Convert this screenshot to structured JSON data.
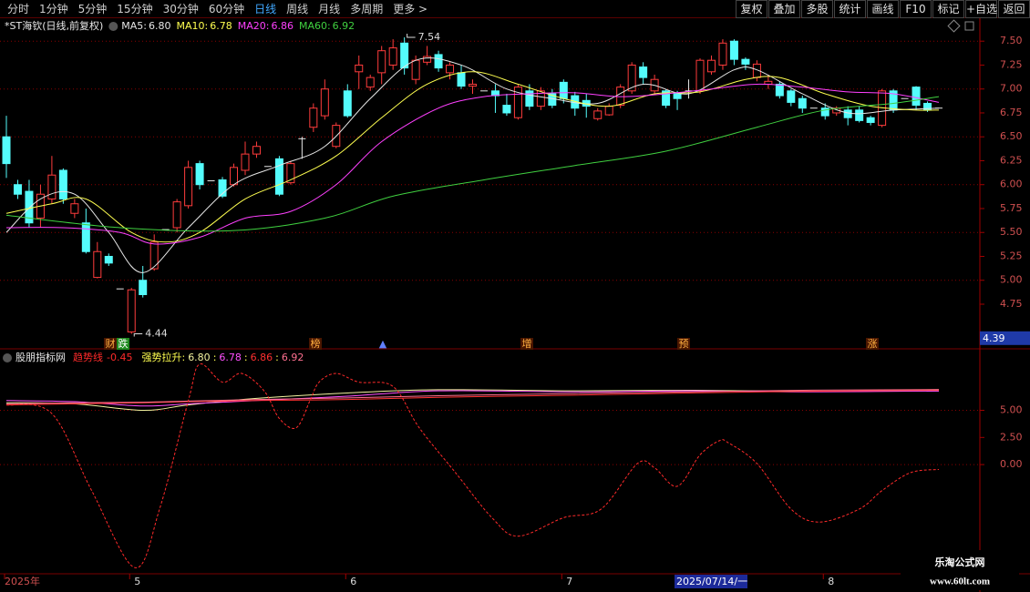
{
  "toolbar": {
    "tabs": [
      "分时",
      "1分钟",
      "5分钟",
      "15分钟",
      "30分钟",
      "60分钟",
      "日线",
      "周线",
      "月线",
      "多周期",
      "更多 >"
    ],
    "active": 6,
    "buttons": [
      "复权",
      "叠加",
      "多股",
      "统计",
      "画线",
      "F10",
      "标记",
      "+自选",
      "返回"
    ]
  },
  "chart_data": [
    {
      "type": "candlestick",
      "title": "*ST海钦(日线,前复权)",
      "xlim": [
        0,
        82
      ],
      "ylim": [
        4.35,
        7.74
      ],
      "grid": true,
      "yticks": [
        {
          "value": 7.5,
          "label": "7.50"
        },
        {
          "value": 7.25,
          "label": "7.25"
        },
        {
          "value": 7.0,
          "label": "7.00"
        },
        {
          "value": 6.75,
          "label": "6.75"
        },
        {
          "value": 6.5,
          "label": "6.50"
        },
        {
          "value": 6.25,
          "label": "6.25"
        },
        {
          "value": 6.0,
          "label": "6.00"
        },
        {
          "value": 5.75,
          "label": "5.75"
        },
        {
          "value": 5.5,
          "label": "5.50"
        },
        {
          "value": 5.25,
          "label": "5.25"
        },
        {
          "value": 5.0,
          "label": "5.00"
        },
        {
          "value": 4.75,
          "label": "4.75"
        }
      ],
      "up_color": "#ff3c3c",
      "down_color": "#54fcfc",
      "doji_color": "#e8e8e8",
      "open": [
        6.5,
        6.0,
        5.93,
        5.65,
        5.85,
        6.15,
        5.7,
        5.6,
        5.03,
        5.25,
        4.91,
        4.46,
        5.0,
        5.12,
        5.53,
        5.55,
        5.78,
        6.22,
        6.04,
        6.05,
        6.0,
        6.15,
        6.32,
        6.19,
        6.27,
        6.02,
        6.48,
        6.6,
        6.72,
        6.4,
        6.98,
        7.18,
        7.02,
        7.17,
        7.25,
        7.48,
        7.1,
        7.28,
        7.36,
        7.17,
        7.17,
        7.03,
        6.98,
        6.98,
        6.83,
        6.7,
        6.98,
        6.82,
        6.95,
        7.07,
        6.93,
        6.88,
        6.69,
        6.73,
        6.83,
        6.98,
        7.23,
        6.98,
        6.98,
        6.95,
        6.98,
        6.98,
        7.18,
        7.25,
        7.5,
        7.31,
        7.12,
        7.05,
        7.05,
        6.98,
        6.9,
        6.8,
        6.8,
        6.75,
        6.78,
        6.78,
        6.7,
        6.62,
        6.98,
        6.9,
        7.02,
        6.85,
        6.8
      ],
      "high": [
        6.72,
        6.05,
        6.05,
        6.0,
        6.3,
        6.17,
        5.85,
        5.75,
        5.4,
        5.28,
        4.91,
        4.92,
        5.15,
        5.48,
        5.53,
        5.85,
        6.25,
        6.25,
        6.04,
        6.08,
        6.22,
        6.45,
        6.45,
        6.19,
        6.3,
        6.25,
        6.5,
        6.85,
        7.1,
        6.65,
        7.05,
        7.35,
        7.15,
        7.45,
        7.52,
        7.54,
        7.35,
        7.45,
        7.4,
        7.28,
        7.25,
        7.1,
        6.98,
        7.05,
        6.95,
        7.05,
        7.05,
        7.02,
        7.0,
        7.1,
        6.97,
        6.95,
        6.8,
        6.85,
        7.05,
        7.28,
        7.28,
        7.15,
        7.0,
        6.98,
        7.1,
        7.32,
        7.35,
        7.52,
        7.52,
        7.33,
        7.3,
        7.15,
        7.08,
        7.0,
        6.93,
        6.8,
        6.85,
        6.82,
        6.82,
        6.82,
        6.72,
        7.0,
        7.0,
        6.9,
        7.03,
        6.87,
        6.8
      ],
      "low": [
        6.07,
        5.85,
        5.55,
        5.55,
        5.8,
        5.8,
        5.65,
        5.28,
        5.02,
        5.15,
        4.91,
        4.44,
        4.82,
        5.1,
        5.53,
        5.5,
        5.75,
        5.95,
        6.04,
        5.86,
        5.98,
        6.1,
        6.28,
        6.19,
        5.88,
        6.0,
        6.27,
        6.55,
        6.68,
        6.38,
        6.7,
        7.0,
        6.98,
        7.05,
        7.2,
        7.15,
        7.05,
        7.25,
        7.18,
        7.1,
        7.0,
        6.95,
        6.98,
        6.75,
        6.72,
        6.68,
        6.78,
        6.78,
        6.8,
        6.85,
        6.72,
        6.7,
        6.67,
        6.72,
        6.8,
        6.95,
        7.05,
        6.95,
        6.8,
        6.78,
        6.9,
        6.95,
        7.15,
        7.2,
        7.25,
        7.2,
        7.08,
        7.0,
        6.9,
        6.82,
        6.75,
        6.8,
        6.68,
        6.72,
        6.62,
        6.65,
        6.62,
        6.6,
        6.75,
        6.9,
        6.78,
        6.76,
        6.8
      ],
      "close": [
        6.22,
        5.9,
        5.6,
        5.9,
        6.1,
        5.85,
        5.8,
        5.3,
        5.3,
        5.18,
        4.91,
        4.9,
        4.85,
        5.4,
        5.53,
        5.82,
        6.18,
        6.0,
        6.04,
        5.88,
        6.18,
        6.32,
        6.4,
        6.19,
        5.9,
        6.22,
        6.48,
        6.8,
        7.0,
        6.62,
        6.72,
        7.25,
        7.12,
        7.4,
        7.43,
        7.22,
        7.3,
        7.34,
        7.22,
        7.25,
        7.03,
        7.05,
        6.98,
        6.93,
        6.75,
        7.02,
        6.82,
        6.98,
        6.83,
        6.9,
        6.8,
        6.82,
        6.77,
        6.82,
        7.02,
        7.25,
        7.12,
        7.1,
        6.83,
        6.9,
        6.98,
        7.3,
        7.3,
        7.48,
        7.31,
        7.26,
        7.26,
        7.08,
        6.93,
        6.86,
        6.8,
        6.8,
        6.72,
        6.8,
        6.7,
        6.67,
        6.65,
        6.98,
        6.78,
        6.9,
        6.83,
        6.78,
        6.8
      ],
      "series": [
        {
          "name": "MA5:",
          "last_label": "6.80",
          "color": "#e6e6e6",
          "x": [
            0,
            3,
            6,
            9,
            12,
            16,
            20,
            24,
            28,
            32,
            36,
            40,
            44,
            48,
            52,
            56,
            60,
            64,
            66,
            70,
            74,
            78,
            82
          ],
          "values": [
            5.5,
            5.85,
            5.9,
            5.5,
            5.08,
            5.55,
            6.0,
            6.2,
            6.4,
            6.9,
            7.3,
            7.25,
            7.0,
            6.9,
            6.85,
            7.05,
            6.95,
            7.2,
            7.2,
            6.95,
            6.75,
            6.78,
            6.8
          ]
        },
        {
          "name": "MA10:",
          "last_label": "6.78",
          "color": "#ffff50",
          "x": [
            0,
            4,
            7,
            11,
            14,
            17,
            21,
            25,
            29,
            33,
            37,
            41,
            45,
            49,
            53,
            57,
            61,
            65,
            68,
            72,
            76,
            80,
            82
          ],
          "values": [
            5.7,
            5.8,
            5.85,
            5.5,
            5.4,
            5.5,
            5.85,
            6.05,
            6.3,
            6.7,
            7.05,
            7.18,
            7.05,
            6.9,
            6.82,
            6.95,
            6.97,
            7.1,
            7.12,
            6.95,
            6.82,
            6.78,
            6.78
          ]
        },
        {
          "name": "MA20:",
          "last_label": "6.86",
          "color": "#ff40ff",
          "x": [
            0,
            5,
            10,
            13,
            17,
            21,
            25,
            29,
            33,
            38,
            42,
            46,
            50,
            54,
            58,
            62,
            66,
            70,
            74,
            78,
            82
          ],
          "values": [
            5.55,
            5.55,
            5.5,
            5.38,
            5.45,
            5.65,
            5.72,
            6.0,
            6.45,
            6.8,
            6.92,
            6.95,
            6.96,
            6.92,
            6.95,
            7.0,
            7.05,
            7.02,
            6.97,
            6.95,
            6.86
          ]
        },
        {
          "name": "MA60:",
          "last_label": "6.92",
          "color": "#40d040",
          "x": [
            0,
            10,
            20,
            28,
            34,
            42,
            50,
            58,
            66,
            72,
            78,
            82
          ],
          "values": [
            5.68,
            5.55,
            5.52,
            5.65,
            5.88,
            6.05,
            6.2,
            6.35,
            6.6,
            6.78,
            6.85,
            6.92
          ]
        }
      ],
      "max_label": 7.54,
      "min_label": 4.44,
      "markers": [
        "财",
        "跌",
        "榜",
        "▲",
        "增",
        "预",
        "涨"
      ],
      "cursor_price": 4.39
    },
    {
      "type": "line",
      "title": "股朋指标网",
      "xlim": [
        0,
        82
      ],
      "ylim": [
        -9.9,
        10.25
      ],
      "grid": true,
      "yticks": [
        {
          "value": 5,
          "label": "5.00"
        },
        {
          "value": 2.5,
          "label": "2.50"
        },
        {
          "value": 0,
          "label": "0.00"
        }
      ],
      "xticks": [
        {
          "value": 0,
          "label": "2025年"
        },
        {
          "value": 11,
          "label": "5"
        },
        {
          "value": 30,
          "label": "6"
        },
        {
          "value": 49,
          "label": "7"
        },
        {
          "value": 72,
          "label": "8"
        }
      ],
      "series": [
        {
          "name": "趋势线",
          "last": -0.45,
          "color": "#ff2a2a",
          "dashed": true,
          "x": [
            0,
            4,
            7.5,
            11.3,
            13.5,
            16,
            17,
            19,
            20.7,
            22.7,
            24,
            25.5,
            26.7,
            27.5,
            29,
            31,
            34,
            36.3,
            39.5,
            42.7,
            45,
            49,
            52.3,
            55.5,
            57,
            59,
            61,
            62.7,
            63.5,
            66,
            69,
            71.5,
            75,
            77,
            79.5,
            82
          ],
          "values": [
            5.5,
            4.7,
            -2.4,
            -9.5,
            -4,
            5.9,
            9.25,
            7.6,
            8.4,
            6.75,
            4.25,
            3.4,
            5.9,
            7.6,
            8.4,
            7.6,
            7.2,
            3.4,
            -0.75,
            -4.9,
            -6.6,
            -4.9,
            -4.1,
            0.1,
            -0.3,
            -2,
            0.9,
            2.2,
            2,
            0.1,
            -4.1,
            -5.3,
            -4.1,
            -2.4,
            -0.75,
            -0.45
          ]
        }
      ],
      "group_label": "强势拉升:",
      "separator": ":",
      "group": [
        {
          "last_label": "6.80",
          "color": "#f4f4a0",
          "x": [
            0,
            6,
            12,
            16,
            22,
            30,
            38,
            50,
            60,
            70,
            82
          ],
          "values": [
            5.7,
            5.6,
            5.0,
            5.5,
            6.1,
            6.6,
            6.9,
            6.8,
            6.85,
            6.75,
            6.8
          ]
        },
        {
          "last_label": "6.78",
          "color": "#ff50ff",
          "x": [
            0,
            6,
            12,
            16,
            22,
            30,
            38,
            50,
            60,
            70,
            82
          ],
          "values": [
            5.9,
            5.8,
            5.4,
            5.6,
            5.9,
            6.3,
            6.8,
            6.7,
            6.8,
            6.7,
            6.78
          ]
        },
        {
          "last_label": "6.86",
          "color": "#ff3030",
          "x": [
            0,
            6,
            12,
            16,
            22,
            30,
            38,
            50,
            60,
            70,
            82
          ],
          "values": [
            5.5,
            5.6,
            5.7,
            5.8,
            5.9,
            6.0,
            6.2,
            6.4,
            6.6,
            6.75,
            6.86
          ]
        },
        {
          "last_label": "6.92",
          "color": "#ff7090",
          "x": [
            0,
            6,
            12,
            16,
            22,
            30,
            38,
            50,
            60,
            70,
            82
          ],
          "values": [
            5.6,
            5.7,
            5.75,
            5.85,
            6.0,
            6.15,
            6.35,
            6.55,
            6.7,
            6.85,
            6.92
          ]
        }
      ],
      "cursor_date": "2025/07/14/一"
    }
  ],
  "watermark": {
    "title": "乐淘公式网",
    "url": "www.60lt.com"
  }
}
